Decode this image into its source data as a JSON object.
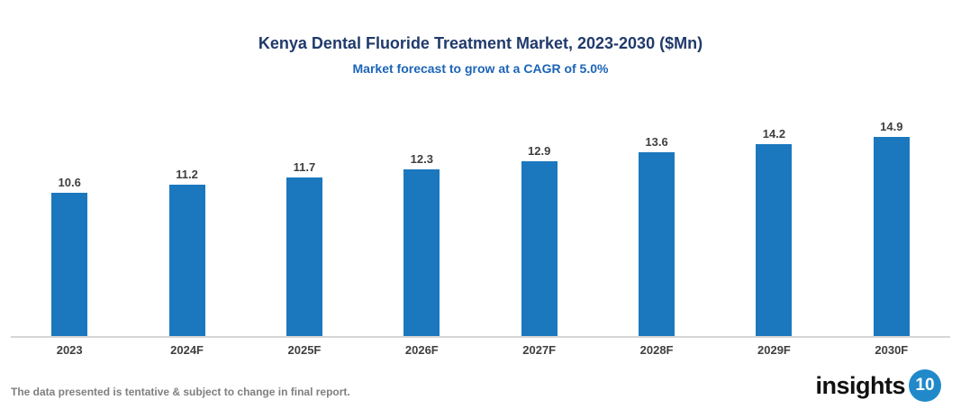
{
  "header": {
    "title": "Kenya Dental Fluoride Treatment Market, 2023-2030 ($Mn)",
    "subtitle": "Market forecast to grow at a CAGR of 5.0%"
  },
  "chart_data": {
    "type": "bar",
    "categories": [
      "2023",
      "2024F",
      "2025F",
      "2026F",
      "2027F",
      "2028F",
      "2029F",
      "2030F"
    ],
    "values": [
      10.6,
      11.2,
      11.7,
      12.3,
      12.9,
      13.6,
      14.2,
      14.9
    ],
    "title": "Kenya Dental Fluoride Treatment Market, 2023-2030 ($Mn)",
    "subtitle": "Market forecast to grow at a CAGR of 5.0%",
    "xlabel": "",
    "ylabel": "",
    "ylim": [
      0,
      16
    ],
    "grid": false,
    "legend": false,
    "value_labels": true,
    "bar_color": "#1B78BE",
    "axis_line_color": "#D6D4D4"
  },
  "footer": {
    "note": "The data presented is tentative & subject to change in final report.",
    "logo_text": "insights",
    "logo_badge": "10"
  },
  "colors": {
    "title": "#203A6B",
    "subtitle": "#1C64B8",
    "bar": "#1B78BE",
    "value_label": "#3F3F3F",
    "category_label": "#3F3F3F",
    "footer_note": "#7F7F7F",
    "logo_badge_bg": "#2189CA"
  }
}
